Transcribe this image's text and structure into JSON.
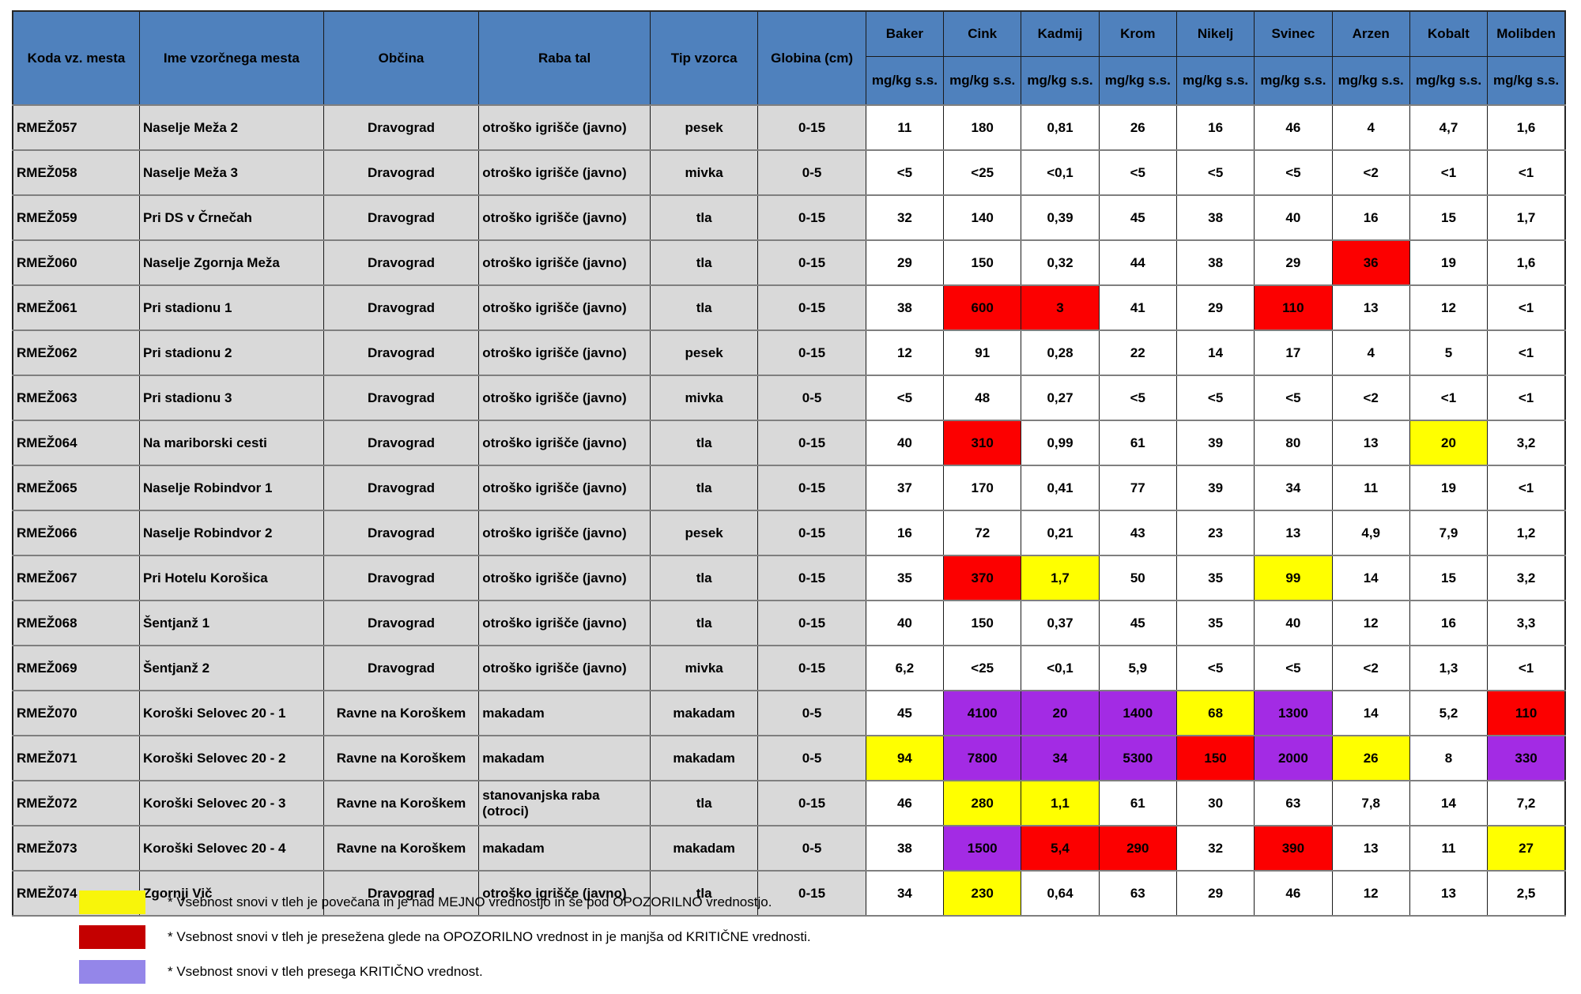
{
  "table": {
    "label_columns": [
      "Koda vz. mesta",
      "Ime vzorčnega mesta",
      "Občina",
      "Raba tal",
      "Tip vzorca",
      "Globina (cm)"
    ],
    "metals": [
      "Baker",
      "Cink",
      "Kadmij",
      "Krom",
      "Nikelj",
      "Svinec",
      "Arzen",
      "Kobalt",
      "Molibden"
    ],
    "unit": "mg/kg s.s.",
    "rows": [
      {
        "code": "RMEŽ057",
        "name": "Naselje Meža 2",
        "municipality": "Dravograd",
        "land_use": "otroško igrišče (javno)",
        "sample_type": "pesek",
        "depth": "0-15",
        "values": [
          "11",
          "180",
          "0,81",
          "26",
          "16",
          "46",
          "4",
          "4,7",
          "1,6"
        ]
      },
      {
        "code": "RMEŽ058",
        "name": "Naselje Meža 3",
        "municipality": "Dravograd",
        "land_use": "otroško igrišče (javno)",
        "sample_type": "mivka",
        "depth": "0-5",
        "values": [
          "<5",
          "<25",
          "<0,1",
          "<5",
          "<5",
          "<5",
          "<2",
          "<1",
          "<1"
        ]
      },
      {
        "code": "RMEŽ059",
        "name": "Pri DS v Črnečah",
        "municipality": "Dravograd",
        "land_use": "otroško igrišče (javno)",
        "sample_type": "tla",
        "depth": "0-15",
        "values": [
          "32",
          "140",
          "0,39",
          "45",
          "38",
          "40",
          "16",
          "15",
          "1,7"
        ]
      },
      {
        "code": "RMEŽ060",
        "name": "Naselje Zgornja Meža",
        "municipality": "Dravograd",
        "land_use": "otroško igrišče (javno)",
        "sample_type": "tla",
        "depth": "0-15",
        "values": [
          "29",
          "150",
          "0,32",
          "44",
          "38",
          "29",
          {
            "v": "36",
            "h": "red"
          },
          "19",
          "1,6"
        ]
      },
      {
        "code": "RMEŽ061",
        "name": "Pri stadionu 1",
        "municipality": "Dravograd",
        "land_use": "otroško igrišče (javno)",
        "sample_type": "tla",
        "depth": "0-15",
        "values": [
          "38",
          {
            "v": "600",
            "h": "red"
          },
          {
            "v": "3",
            "h": "red"
          },
          "41",
          "29",
          {
            "v": "110",
            "h": "red"
          },
          "13",
          "12",
          "<1"
        ]
      },
      {
        "code": "RMEŽ062",
        "name": "Pri stadionu 2",
        "municipality": "Dravograd",
        "land_use": "otroško igrišče (javno)",
        "sample_type": "pesek",
        "depth": "0-15",
        "values": [
          "12",
          "91",
          "0,28",
          "22",
          "14",
          "17",
          "4",
          "5",
          "<1"
        ]
      },
      {
        "code": "RMEŽ063",
        "name": "Pri stadionu 3",
        "municipality": "Dravograd",
        "land_use": "otroško igrišče (javno)",
        "sample_type": "mivka",
        "depth": "0-5",
        "values": [
          "<5",
          "48",
          "0,27",
          "<5",
          "<5",
          "<5",
          "<2",
          "<1",
          "<1"
        ]
      },
      {
        "code": "RMEŽ064",
        "name": "Na mariborski cesti",
        "municipality": "Dravograd",
        "land_use": "otroško igrišče (javno)",
        "sample_type": "tla",
        "depth": "0-15",
        "values": [
          "40",
          {
            "v": "310",
            "h": "red"
          },
          "0,99",
          "61",
          "39",
          "80",
          "13",
          {
            "v": "20",
            "h": "yellow"
          },
          "3,2"
        ]
      },
      {
        "code": "RMEŽ065",
        "name": "Naselje Robindvor 1",
        "municipality": "Dravograd",
        "land_use": "otroško igrišče (javno)",
        "sample_type": "tla",
        "depth": "0-15",
        "values": [
          "37",
          "170",
          "0,41",
          "77",
          "39",
          "34",
          "11",
          "19",
          "<1"
        ]
      },
      {
        "code": "RMEŽ066",
        "name": "Naselje Robindvor 2",
        "municipality": "Dravograd",
        "land_use": "otroško igrišče (javno)",
        "sample_type": "pesek",
        "depth": "0-15",
        "values": [
          "16",
          "72",
          "0,21",
          "43",
          "23",
          "13",
          "4,9",
          "7,9",
          "1,2"
        ]
      },
      {
        "code": "RMEŽ067",
        "name": "Pri Hotelu Korošica",
        "municipality": "Dravograd",
        "land_use": "otroško igrišče (javno)",
        "sample_type": "tla",
        "depth": "0-15",
        "values": [
          "35",
          {
            "v": "370",
            "h": "red"
          },
          {
            "v": "1,7",
            "h": "yellow"
          },
          "50",
          "35",
          {
            "v": "99",
            "h": "yellow"
          },
          "14",
          "15",
          "3,2"
        ]
      },
      {
        "code": "RMEŽ068",
        "name": "Šentjanž 1",
        "municipality": "Dravograd",
        "land_use": "otroško igrišče (javno)",
        "sample_type": "tla",
        "depth": "0-15",
        "values": [
          "40",
          "150",
          "0,37",
          "45",
          "35",
          "40",
          "12",
          "16",
          "3,3"
        ]
      },
      {
        "code": "RMEŽ069",
        "name": "Šentjanž 2",
        "municipality": "Dravograd",
        "land_use": "otroško igrišče (javno)",
        "sample_type": "mivka",
        "depth": "0-15",
        "values": [
          "6,2",
          "<25",
          "<0,1",
          "5,9",
          "<5",
          "<5",
          "<2",
          "1,3",
          "<1"
        ]
      },
      {
        "code": "RMEŽ070",
        "name": "Koroški Selovec 20 - 1",
        "municipality": "Ravne na Koroškem",
        "land_use": "makadam",
        "sample_type": "makadam",
        "depth": "0-5",
        "values": [
          "45",
          {
            "v": "4100",
            "h": "purple"
          },
          {
            "v": "20",
            "h": "purple"
          },
          {
            "v": "1400",
            "h": "purple"
          },
          {
            "v": "68",
            "h": "yellow"
          },
          {
            "v": "1300",
            "h": "purple"
          },
          "14",
          "5,2",
          {
            "v": "110",
            "h": "red"
          }
        ]
      },
      {
        "code": "RMEŽ071",
        "name": "Koroški Selovec 20 - 2",
        "municipality": "Ravne na Koroškem",
        "land_use": "makadam",
        "sample_type": "makadam",
        "depth": "0-5",
        "values": [
          {
            "v": "94",
            "h": "yellow"
          },
          {
            "v": "7800",
            "h": "purple"
          },
          {
            "v": "34",
            "h": "purple"
          },
          {
            "v": "5300",
            "h": "purple"
          },
          {
            "v": "150",
            "h": "red"
          },
          {
            "v": "2000",
            "h": "purple"
          },
          {
            "v": "26",
            "h": "yellow"
          },
          "8",
          {
            "v": "330",
            "h": "purple"
          }
        ]
      },
      {
        "code": "RMEŽ072",
        "name": "Koroški Selovec 20 - 3",
        "municipality": "Ravne na Koroškem",
        "land_use": "stanovanjska raba (otroci)",
        "sample_type": "tla",
        "depth": "0-15",
        "values": [
          "46",
          {
            "v": "280",
            "h": "yellow"
          },
          {
            "v": "1,1",
            "h": "yellow"
          },
          "61",
          "30",
          "63",
          "7,8",
          "14",
          "7,2"
        ]
      },
      {
        "code": "RMEŽ073",
        "name": "Koroški Selovec 20 - 4",
        "municipality": "Ravne na Koroškem",
        "land_use": "makadam",
        "sample_type": "makadam",
        "depth": "0-5",
        "values": [
          "38",
          {
            "v": "1500",
            "h": "purple"
          },
          {
            "v": "5,4",
            "h": "red"
          },
          {
            "v": "290",
            "h": "red"
          },
          "32",
          {
            "v": "390",
            "h": "red"
          },
          "13",
          "11",
          {
            "v": "27",
            "h": "yellow"
          }
        ]
      },
      {
        "code": "RMEŽ074",
        "name": "Zgornji Vič",
        "municipality": "Dravograd",
        "land_use": "otroško igrišče (javno)",
        "sample_type": "tla",
        "depth": "0-15",
        "values": [
          "34",
          {
            "v": "230",
            "h": "yellow"
          },
          "0,64",
          "63",
          "29",
          "46",
          "12",
          "13",
          "2,5"
        ]
      }
    ]
  },
  "legend": [
    {
      "color": "legend_yellow",
      "name": "yellow",
      "text": "* Vsebnost snovi v tleh je povečana in je nad MEJNO vrednostjo in še pod OPOZORILNO vrednostjo."
    },
    {
      "color": "legend_red",
      "name": "red",
      "text": "* Vsebnost snovi v tleh je presežena glede na OPOZORILNO vrednost in je manjša od KRITIČNE vrednosti."
    },
    {
      "color": "legend_purple",
      "name": "purple",
      "text": "* Vsebnost snovi v tleh presega KRITIČNO vrednost."
    }
  ],
  "colors": {
    "header_bg": "#4F81BD",
    "header_text": "#000000",
    "label_bg": "#D9D9D9",
    "cell_bg": "#FFFFFF",
    "yellow": "#FFFF00",
    "red": "#FC0000",
    "purple": "#A32BE4",
    "legend_yellow": "#F8F50A",
    "legend_red": "#C40000",
    "legend_purple": "#9486E9"
  }
}
